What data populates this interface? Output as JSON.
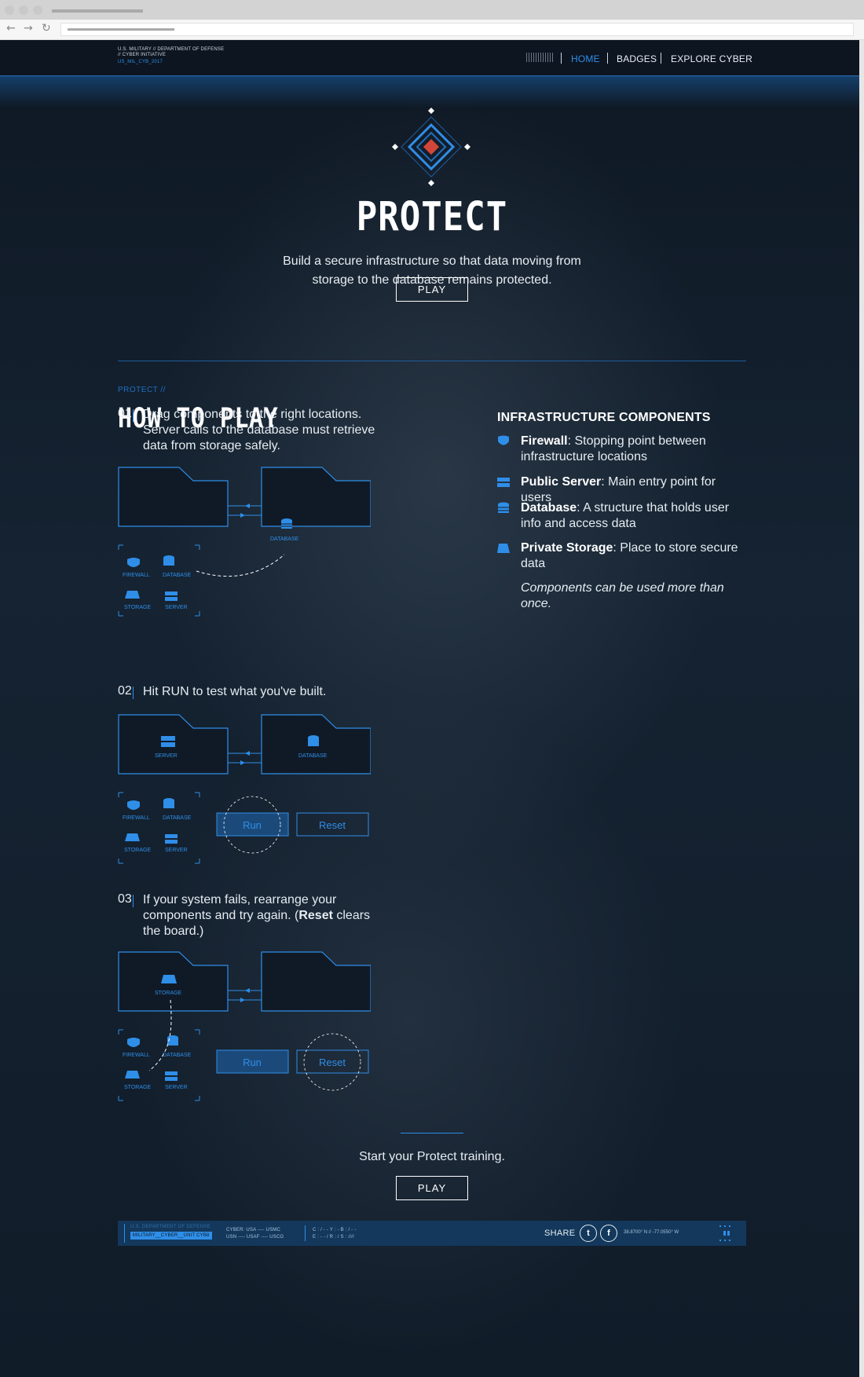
{
  "header": {
    "logo_top": "U.S. MILITARY // DEPARTMENT OF DEFENSE // CYBER INITIATIVE",
    "logo_bottom": "US_MIL_CYB_2017",
    "nav": [
      {
        "label": "HOME",
        "active": true
      },
      {
        "label": "BADGES",
        "active": false
      },
      {
        "label": "EXPLORE CYBER",
        "active": false
      }
    ]
  },
  "hero": {
    "title": "PROTECT",
    "description": "Build a secure infrastructure so that data moving from storage to the database remains protected.",
    "play_label": "PLAY"
  },
  "how_to_play": {
    "kicker": "PROTECT //",
    "title": "HOW TO PLAY",
    "steps": [
      {
        "num": "01",
        "text": "Drag components to the right locations. Server calls to the database must retrieve data from storage safely."
      },
      {
        "num": "02",
        "text": "Hit RUN to test what you've built."
      },
      {
        "num": "03",
        "text_before": "If your system fails, rearrange your components and try again. (",
        "text_bold": "Reset",
        "text_after": " clears the board.)"
      }
    ],
    "palette": {
      "firewall": "FIREWALL",
      "database": "DATABASE",
      "storage": "STORAGE",
      "server": "SERVER"
    },
    "buttons": {
      "run": "Run",
      "reset": "Reset"
    }
  },
  "infrastructure": {
    "title": "INFRASTRUCTURE COMPONENTS",
    "items": [
      {
        "icon": "shield-icon",
        "name": "Firewall",
        "desc": ": Stopping point between infrastructure locations"
      },
      {
        "icon": "server-icon",
        "name": "Public Server",
        "desc": ": Main entry point for users"
      },
      {
        "icon": "database-icon",
        "name": "Database",
        "desc": ": A structure that holds user info and access data"
      },
      {
        "icon": "storage-icon",
        "name": "Private Storage",
        "desc": ": Place to store secure data"
      }
    ],
    "note": "Components can be used more than once."
  },
  "cta": {
    "text": "Start your Protect training.",
    "play_label": "PLAY"
  },
  "footer": {
    "dim_text": "U.S. DEPARTMENT OF DEFENSE",
    "label": "MILITARY__CYBER__UNIT CYB8",
    "branches_1": "CYBER: USA ---- USMC",
    "branches_2": "USN ---- USAF ---- USCG",
    "codes_1": "C : / - -   Y : -      B : / - -",
    "codes_2": "E : - - /   R : /      S : ////",
    "share_label": "SHARE",
    "coords": "38.8700° N // -77.0550° W"
  },
  "colors": {
    "accent": "#2f8ee8",
    "background": "#111c29",
    "emblem_core": "#d2463a"
  }
}
